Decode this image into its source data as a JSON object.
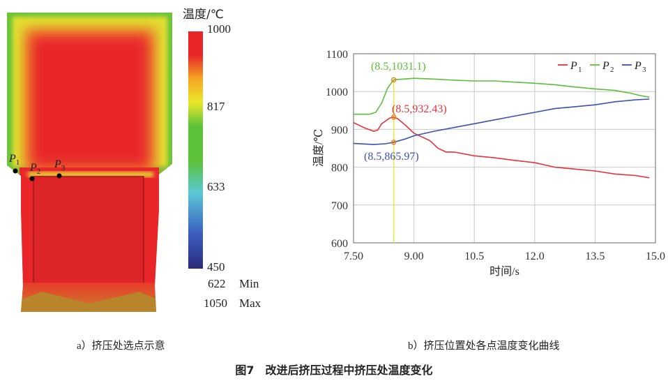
{
  "panel_a": {
    "caption": "a）挤压处选点示意",
    "colorbar": {
      "title": "温度/℃",
      "ticks": [
        "1000",
        "817",
        "633",
        "450"
      ],
      "min_value": "622",
      "min_label": "Min",
      "max_value": "1050",
      "max_label": "Max",
      "colors": [
        "#e8262a",
        "#f5a623",
        "#e8e82a",
        "#5cc23a",
        "#5bc8d6",
        "#3b5fc0",
        "#2a2a7a"
      ]
    },
    "points": [
      {
        "label": "P",
        "sub": "1"
      },
      {
        "label": "P",
        "sub": "2"
      },
      {
        "label": "P",
        "sub": "3"
      }
    ]
  },
  "panel_b": {
    "caption": "b）挤压位置处各点温度变化曲线"
  },
  "figure_title": "图7　改进后挤压过程中挤压处温度变化",
  "chart_data": {
    "type": "line",
    "xlabel": "时间/s",
    "ylabel": "温度/℃",
    "xlim": [
      7.5,
      15.0
    ],
    "ylim": [
      600,
      1100
    ],
    "xticks": [
      "7.50",
      "9.00",
      "10.5",
      "12.0",
      "13.5",
      "15.0"
    ],
    "yticks": [
      "600",
      "700",
      "800",
      "900",
      "1000",
      "1100"
    ],
    "grid": true,
    "legend_position": "top-right",
    "marker_line_x": 8.5,
    "series": [
      {
        "name": "P1",
        "name_base": "P",
        "name_sub": "1",
        "color": "#e8303a",
        "x": [
          7.5,
          7.75,
          8.0,
          8.1,
          8.2,
          8.4,
          8.5,
          8.6,
          8.8,
          9.0,
          9.2,
          9.4,
          9.6,
          9.8,
          10.0,
          10.5,
          11.0,
          11.5,
          12.0,
          12.5,
          13.0,
          13.5,
          14.0,
          14.5,
          14.85
        ],
        "y": [
          918,
          905,
          895,
          898,
          915,
          930,
          932.43,
          928,
          910,
          890,
          880,
          870,
          850,
          840,
          840,
          830,
          825,
          818,
          812,
          800,
          795,
          790,
          782,
          778,
          772
        ]
      },
      {
        "name": "P2",
        "name_base": "P",
        "name_sub": "2",
        "color": "#5cbf3a",
        "x": [
          7.5,
          7.9,
          8.05,
          8.2,
          8.35,
          8.5,
          9.0,
          9.5,
          10.0,
          10.5,
          11.0,
          11.5,
          12.0,
          12.5,
          13.0,
          13.5,
          14.0,
          14.4,
          14.6,
          14.85
        ],
        "y": [
          940,
          940,
          945,
          970,
          1010,
          1031.1,
          1035,
          1033,
          1030,
          1028,
          1028,
          1025,
          1022,
          1018,
          1012,
          1007,
          1003,
          995,
          990,
          985
        ]
      },
      {
        "name": "P3",
        "name_base": "P",
        "name_sub": "3",
        "color": "#3d4fb5",
        "x": [
          7.5,
          8.0,
          8.3,
          8.5,
          8.8,
          9.0,
          9.5,
          10.0,
          10.5,
          11.0,
          11.5,
          12.0,
          12.5,
          13.0,
          13.5,
          14.0,
          14.5,
          14.85
        ],
        "y": [
          863,
          860,
          862,
          865.97,
          875,
          883,
          895,
          905,
          915,
          925,
          935,
          945,
          955,
          960,
          965,
          973,
          978,
          980
        ]
      }
    ],
    "annotations": [
      {
        "text": "(8.5,1031.1)",
        "x": 8.5,
        "y": 1031.1,
        "color": "#5cbf3a"
      },
      {
        "text": "(8.5,932.43)",
        "x": 8.5,
        "y": 932.43,
        "color": "#e8303a"
      },
      {
        "text": "(8.5,865.97)",
        "x": 8.5,
        "y": 865.97,
        "color": "#3d4fb5"
      }
    ]
  }
}
